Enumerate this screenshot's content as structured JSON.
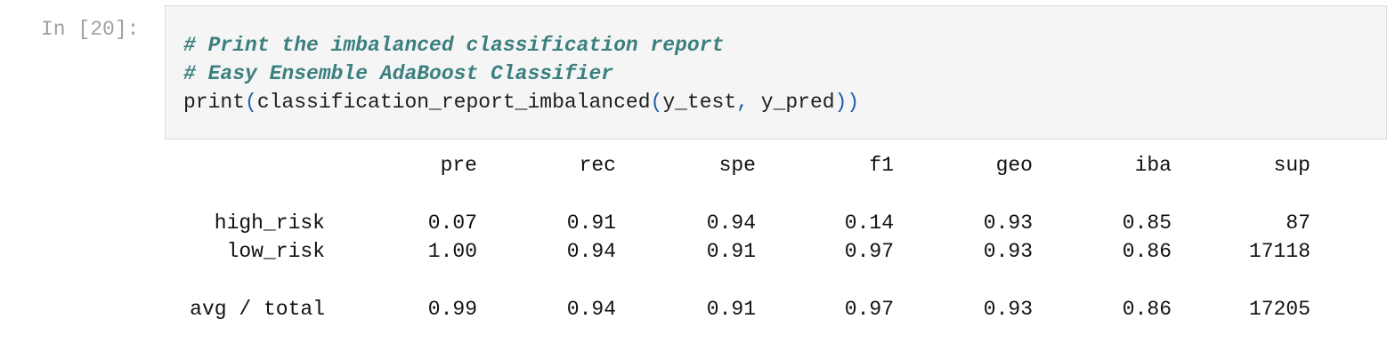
{
  "prompt": "In [20]:",
  "code": {
    "comment1": "# Print the imbalanced classification report",
    "comment2": "# Easy Ensemble AdaBoost Classifier",
    "stmt_prefix": "print",
    "paren_open1": "(",
    "func": "classification_report_imbalanced",
    "paren_open2": "(",
    "arg1": "y_test",
    "comma": ",",
    "arg2": " y_pred",
    "paren_close": "))"
  },
  "report": {
    "headers": [
      "pre",
      "rec",
      "spe",
      "f1",
      "geo",
      "iba",
      "sup"
    ],
    "rows": [
      {
        "label": "high_risk",
        "values": [
          "0.07",
          "0.91",
          "0.94",
          "0.14",
          "0.93",
          "0.85",
          "87"
        ]
      },
      {
        "label": "low_risk",
        "values": [
          "1.00",
          "0.94",
          "0.91",
          "0.97",
          "0.93",
          "0.86",
          "17118"
        ]
      },
      {
        "label": "avg / total",
        "values": [
          "0.99",
          "0.94",
          "0.91",
          "0.97",
          "0.93",
          "0.86",
          "17205"
        ]
      }
    ]
  }
}
